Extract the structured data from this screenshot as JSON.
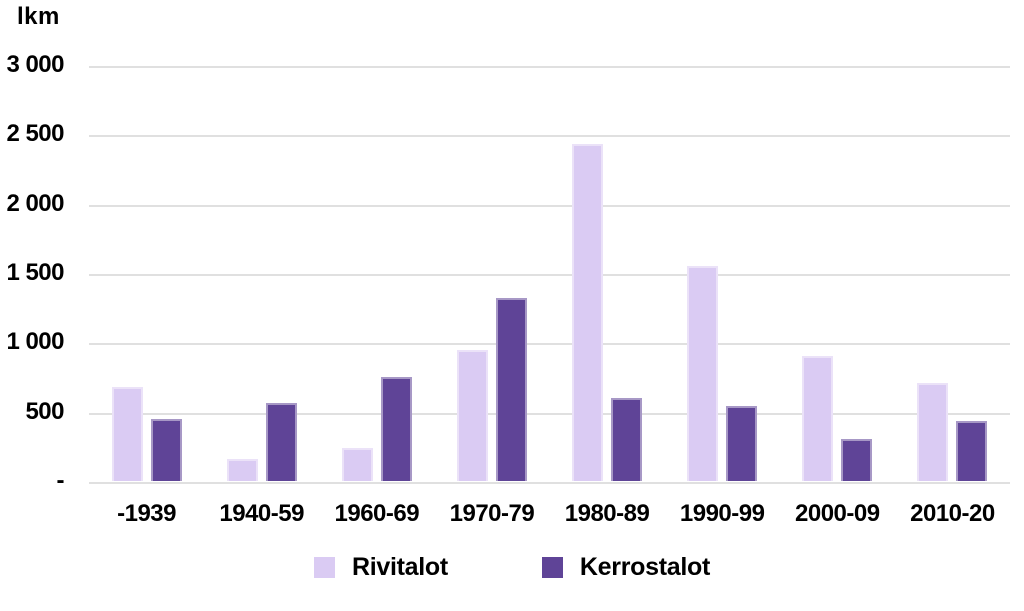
{
  "chart_data": {
    "type": "bar",
    "title": "",
    "ylabel": "lkm",
    "xlabel": "",
    "grid": true,
    "gridline_color": "#e0e0e0",
    "legend_position": "bottom",
    "ylim": [
      0,
      3000
    ],
    "yticks": [
      {
        "label": "3 000",
        "value": 3000
      },
      {
        "label": "2 500",
        "value": 2500
      },
      {
        "label": "2 000",
        "value": 2000
      },
      {
        "label": "1 500",
        "value": 1500
      },
      {
        "label": "1 000",
        "value": 1000
      },
      {
        "label": "500",
        "value": 500
      },
      {
        "label": "-",
        "value": 0
      }
    ],
    "categories": [
      "-1939",
      "1940-59",
      "1960-69",
      "1970-79",
      "1980-89",
      "1990-99",
      "2000-09",
      "2010-20"
    ],
    "series": [
      {
        "name": "Rivitalot",
        "color": "#dacbf3",
        "values": [
          680,
          160,
          240,
          945,
          2430,
          1550,
          900,
          710
        ]
      },
      {
        "name": "Kerrostalot",
        "color": "#5f4497",
        "values": [
          450,
          560,
          750,
          1320,
          600,
          540,
          300,
          430
        ]
      }
    ]
  }
}
